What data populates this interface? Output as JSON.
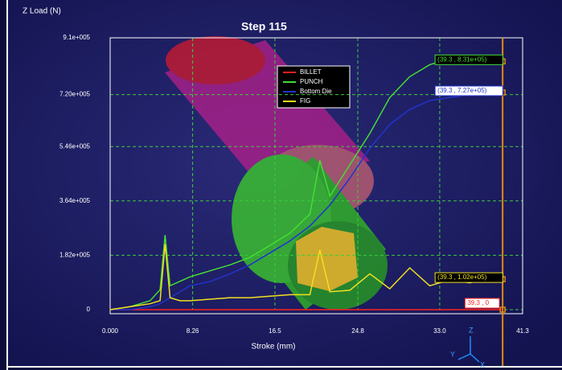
{
  "chart_data": {
    "type": "line",
    "title": "Step 115",
    "y_label": "Z Load (N)",
    "x_label": "Stroke (mm)",
    "x": [
      0,
      2,
      4,
      5,
      5.5,
      6,
      7,
      8,
      10,
      12,
      14,
      16,
      18,
      20,
      21,
      22,
      24,
      26,
      28,
      30,
      32,
      34,
      36,
      38,
      39.3
    ],
    "series": [
      {
        "name": "BILLET",
        "color": "#ff2020",
        "end_label": "39.3 , 0",
        "values": [
          0,
          0,
          0,
          0,
          0,
          0,
          0,
          0,
          0,
          0,
          0,
          0,
          0,
          0,
          0,
          0,
          0,
          0,
          0,
          0,
          0,
          0,
          0,
          0,
          0
        ]
      },
      {
        "name": "PUNCH",
        "color": "#44dd33",
        "end_label": "(39.3 , 8.31e+05)",
        "values": [
          0,
          10000,
          30000,
          67000,
          250000,
          80000,
          95000,
          110000,
          130000,
          150000,
          175000,
          215000,
          256000,
          320000,
          500000,
          380000,
          485000,
          590000,
          710000,
          780000,
          820000,
          840000,
          850000,
          830000,
          831000
        ]
      },
      {
        "name": "Bottom Die",
        "color": "#2233cc",
        "end_label": "(39.3 , 7.27e+05)",
        "values": [
          0,
          0,
          10000,
          20000,
          30000,
          40000,
          60000,
          80000,
          94000,
          120000,
          150000,
          190000,
          230000,
          280000,
          315000,
          350000,
          440000,
          540000,
          620000,
          670000,
          700000,
          710000,
          720000,
          722000,
          727000
        ]
      },
      {
        "name": "FIG",
        "color": "#f0e020",
        "end_label": "(39.3 , 1.02e+05)",
        "values": [
          0,
          10000,
          20000,
          30000,
          220000,
          40000,
          30000,
          30000,
          35000,
          40000,
          40000,
          45000,
          50000,
          50000,
          200000,
          60000,
          65000,
          120000,
          70000,
          140000,
          80000,
          100000,
          90000,
          105000,
          102000
        ]
      }
    ],
    "cursor_x": 39.3,
    "xlim": [
      0,
      41.3
    ],
    "xticks": [
      0,
      8.26,
      16.5,
      24.8,
      {
        "value": 33.0,
        "label": "33.0"
      },
      41.3
    ],
    "xticks_fmt": [
      {
        "value": 0,
        "label": "0.000"
      }
    ],
    "ylim": [
      0,
      910000
    ],
    "yticks": [
      {
        "value": 0,
        "label": "0"
      },
      {
        "value": 182000,
        "label": "1.82e+005"
      },
      {
        "value": 364000,
        "label": "3.64e+005"
      },
      {
        "value": 546000,
        "label": "5.46e+005"
      },
      {
        "value": 720000,
        "label": "7.20e+005"
      },
      {
        "value": 910000,
        "label": "9.1e+005"
      }
    ],
    "grid": true,
    "axis_triad": {
      "z": "Z",
      "y": "Y",
      "x": "X"
    }
  }
}
